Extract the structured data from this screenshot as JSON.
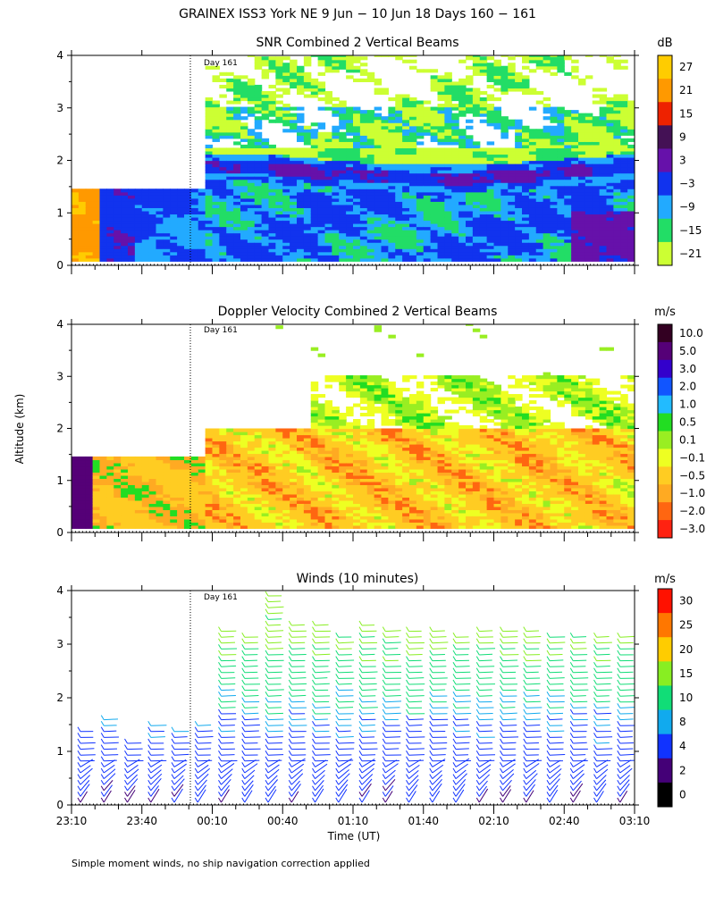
{
  "figure": {
    "title": "GRAINEX ISS3 York NE   9 Jun − 10 Jun 18 Days 160 − 161",
    "ylabel": "Altitude (km)",
    "xlabel": "Time (UT)",
    "footnote": "Simple moment winds, no ship navigation correction applied",
    "day_marker": "Day 161",
    "x_ticks": [
      "23:10",
      "23:40",
      "00:10",
      "00:40",
      "01:10",
      "01:40",
      "02:10",
      "02:40",
      "03:10"
    ],
    "y_ticks": [
      "0",
      "1",
      "2",
      "3",
      "4"
    ]
  },
  "chart_data": [
    {
      "type": "heatmap",
      "title": "SNR Combined 2 Vertical Beams",
      "ylabel": "Altitude (km)",
      "ylim": [
        0,
        4
      ],
      "colorbar_unit": "dB",
      "colorbar_labels": [
        "27",
        "21",
        "15",
        "9",
        "3",
        "−3",
        "−9",
        "−15",
        "−21"
      ],
      "colorbar_colors": [
        "#ffcc00",
        "#ff9900",
        "#ee2200",
        "#441155",
        "#6611aa",
        "#1133ee",
        "#22aaff",
        "#22dd66",
        "#ccff33"
      ],
      "range_gates_top_km": {
        "before_00:05": 1.42,
        "after_00:05": 4.0
      },
      "layers": [
        {
          "feature": "strong return near ground",
          "time": "23:10-23:20",
          "altitude_km": [
            0.1,
            1.42
          ],
          "snr_db": 27
        },
        {
          "feature": "elevated layer",
          "time": "00:05-03:10",
          "altitude_km": [
            1.6,
            2.1
          ],
          "snr_db": 3
        },
        {
          "feature": "boundary layer",
          "time": "23:20-03:10",
          "altitude_km": [
            0.1,
            1.5
          ],
          "snr_db": -3
        },
        {
          "feature": "upper layer",
          "time": "00:05-03:10",
          "altitude_km": [
            2.1,
            2.9
          ],
          "snr_db": -15
        }
      ]
    },
    {
      "type": "heatmap",
      "title": "Doppler Velocity Combined 2 Vertical Beams",
      "ylabel": "Altitude (km)",
      "ylim": [
        0,
        4
      ],
      "colorbar_unit": "m/s",
      "colorbar_labels": [
        "10.0",
        "5.0",
        "3.0",
        "2.0",
        "1.0",
        "0.5",
        "0.1",
        "−0.1",
        "−0.5",
        "−1.0",
        "−2.0",
        "−3.0"
      ],
      "colorbar_colors": [
        "#330022",
        "#550077",
        "#3300cc",
        "#1155ff",
        "#22bbff",
        "#22dd22",
        "#99ee22",
        "#eeff22",
        "#ffcc22",
        "#ffaa22",
        "#ff6611",
        "#ff2211"
      ],
      "layers": [
        {
          "feature": "strong updraft",
          "time": "23:10-23:17",
          "altitude_km": [
            0.1,
            1.42
          ],
          "velocity_ms": 5.0
        },
        {
          "feature": "weak downdraft",
          "time": "23:17-03:10",
          "altitude_km": [
            0.1,
            2.0
          ],
          "velocity_ms": -0.5
        },
        {
          "feature": "near zero",
          "time": "00:50-03:10",
          "altitude_km": [
            2.0,
            2.9
          ],
          "velocity_ms": 0.1
        }
      ]
    },
    {
      "type": "wind_barbs",
      "title": "Winds (10 minutes)",
      "ylabel": "Altitude (km)",
      "xlabel": "Time (UT)",
      "ylim": [
        0,
        4
      ],
      "colorbar_unit": "m/s",
      "colorbar_labels": [
        "30",
        "25",
        "20",
        "15",
        "10",
        "8",
        "4",
        "2",
        "0"
      ],
      "colorbar_colors": [
        "#ff1100",
        "#ff7700",
        "#ffcc00",
        "#88ee22",
        "#11dd77",
        "#11aaee",
        "#1133ff",
        "#440077",
        "#000000"
      ],
      "profiles_time": [
        "23:10",
        "23:20",
        "23:30",
        "23:40",
        "23:50",
        "00:00",
        "00:10",
        "00:20",
        "00:30",
        "00:40",
        "00:50",
        "01:00",
        "01:10",
        "01:20",
        "01:30",
        "01:40",
        "01:50",
        "02:00",
        "02:10",
        "02:20",
        "02:30",
        "02:40",
        "02:50",
        "03:00"
      ],
      "profile_top_km": [
        1.4,
        1.6,
        1.2,
        1.5,
        1.4,
        1.5,
        3.3,
        3.2,
        4.0,
        3.4,
        3.4,
        3.2,
        3.4,
        3.3,
        3.3,
        3.3,
        3.2,
        3.3,
        3.3,
        3.3,
        3.2,
        3.2,
        3.2,
        3.2
      ],
      "wind_speed_by_altitude_ms": [
        {
          "altitude_km": 0.2,
          "speed_ms": 3
        },
        {
          "altitude_km": 1.0,
          "speed_ms": 6
        },
        {
          "altitude_km": 2.0,
          "speed_ms": 10
        },
        {
          "altitude_km": 3.0,
          "speed_ms": 16
        }
      ]
    }
  ]
}
